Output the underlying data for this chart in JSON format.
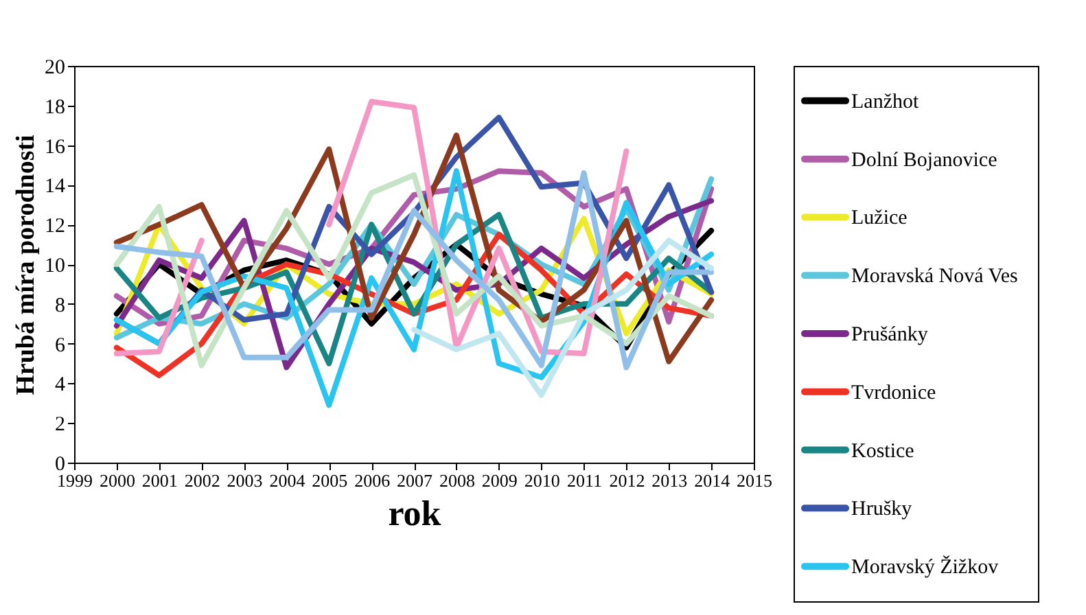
{
  "chart_data": {
    "type": "line",
    "xlabel": "rok",
    "ylabel": "Hrubá míra porodnosti",
    "x": [
      2000,
      2001,
      2002,
      2003,
      2004,
      2005,
      2006,
      2007,
      2008,
      2009,
      2010,
      2011,
      2012,
      2013,
      2014
    ],
    "xlim": [
      1999,
      2015
    ],
    "xticks": [
      1999,
      2000,
      2001,
      2002,
      2003,
      2004,
      2005,
      2006,
      2007,
      2008,
      2009,
      2010,
      2011,
      2012,
      2013,
      2014,
      2015
    ],
    "ylim": [
      0,
      20
    ],
    "yticks": [
      0,
      2,
      4,
      6,
      8,
      10,
      12,
      14,
      16,
      18,
      20
    ],
    "grid": false,
    "legend": "right",
    "line_style": "solid",
    "marker": "none",
    "series": [
      {
        "name": "Lanžhot",
        "color": "#000000",
        "values": [
          7.5,
          10,
          8.5,
          9.7,
          10.2,
          9.5,
          7,
          9.3,
          11,
          9.3,
          8.5,
          7.9,
          5.8,
          9.5,
          11.7
        ]
      },
      {
        "name": "Dolní Bojanovice",
        "color": "#b05ca8",
        "values": [
          8.4,
          7,
          7.4,
          11.2,
          10.8,
          10,
          10.8,
          13.5,
          13.8,
          14.7,
          14.6,
          12.9,
          13.8,
          7.1,
          13.8
        ]
      },
      {
        "name": "Lužice",
        "color": "#ecea2a",
        "values": [
          6.5,
          12,
          8.8,
          7,
          10,
          8.5,
          8,
          8,
          9,
          7.5,
          8.7,
          12.3,
          6.5,
          9.7,
          8.5
        ]
      },
      {
        "name": "Moravská Nová Ves",
        "color": "#5bc6dc",
        "values": [
          6.3,
          7.3,
          7,
          8,
          7.3,
          9,
          12,
          9,
          12.5,
          11.5,
          10,
          9,
          12.8,
          8.7,
          14.3
        ]
      },
      {
        "name": "Prušánky",
        "color": "#7b2a8c",
        "values": [
          6.9,
          10.2,
          9.3,
          12.2,
          4.8,
          8,
          10.8,
          10.1,
          8.7,
          9,
          10.8,
          9.3,
          11,
          12.4,
          13.2
        ]
      },
      {
        "name": "Tvrdonice",
        "color": "#ee3226",
        "values": [
          5.8,
          4.4,
          6,
          9,
          10,
          9.5,
          8.5,
          7.5,
          8.2,
          11.5,
          9.7,
          7.5,
          9.5,
          7.8,
          7.4
        ]
      },
      {
        "name": "Kostice",
        "color": "#1a8585",
        "values": [
          9.8,
          7.3,
          8.3,
          8.8,
          9.6,
          5,
          12,
          7.5,
          11,
          12.5,
          7.3,
          8,
          8,
          10.3,
          8.6
        ]
      },
      {
        "name": "Hrušky",
        "color": "#3a54a8",
        "values": [
          7.2,
          6,
          8.7,
          7.2,
          7.5,
          12.9,
          10.5,
          12.6,
          15.4,
          17.4,
          13.9,
          14.1,
          10.3,
          14,
          8.6
        ]
      },
      {
        "name": "Moravský Žižkov",
        "color": "#29c5f0",
        "values": [
          7.2,
          6,
          8.6,
          9.4,
          8.8,
          2.9,
          9.3,
          5.7,
          14.7,
          5,
          4.3,
          7.1,
          13.1,
          9,
          10.5
        ]
      },
      {
        "color": "#8b3a1e",
        "values": [
          11.1,
          12,
          13,
          8.8,
          11.8,
          15.8,
          7.3,
          11.5,
          16.5,
          8.7,
          7.1,
          8.7,
          12.2,
          5.1,
          8.2
        ]
      },
      {
        "color": "#f497c4",
        "values": [
          5.5,
          5.6,
          11.2,
          null,
          null,
          12,
          18.2,
          17.9,
          5.8,
          10.8,
          5.6,
          5.5,
          15.7,
          null,
          null
        ]
      },
      {
        "color": "#c5e3c5",
        "values": [
          10,
          12.9,
          4.9,
          8.8,
          12.7,
          9.3,
          13.6,
          14.5,
          7.5,
          9.4,
          6.9,
          7.4,
          6,
          8.4,
          7.4
        ]
      },
      {
        "color": "#8fbfe8",
        "values": [
          10.9,
          10.6,
          10.4,
          5.3,
          5.3,
          7.7,
          7.7,
          12.7,
          10.2,
          8.2,
          4.9,
          14.6,
          4.8,
          9.6,
          9.6
        ]
      },
      {
        "color": "#c0e6f0",
        "values": [
          null,
          null,
          null,
          null,
          null,
          null,
          null,
          6.7,
          5.7,
          6.5,
          3.4,
          7.5,
          8.7,
          11.2,
          9.8
        ]
      }
    ]
  }
}
